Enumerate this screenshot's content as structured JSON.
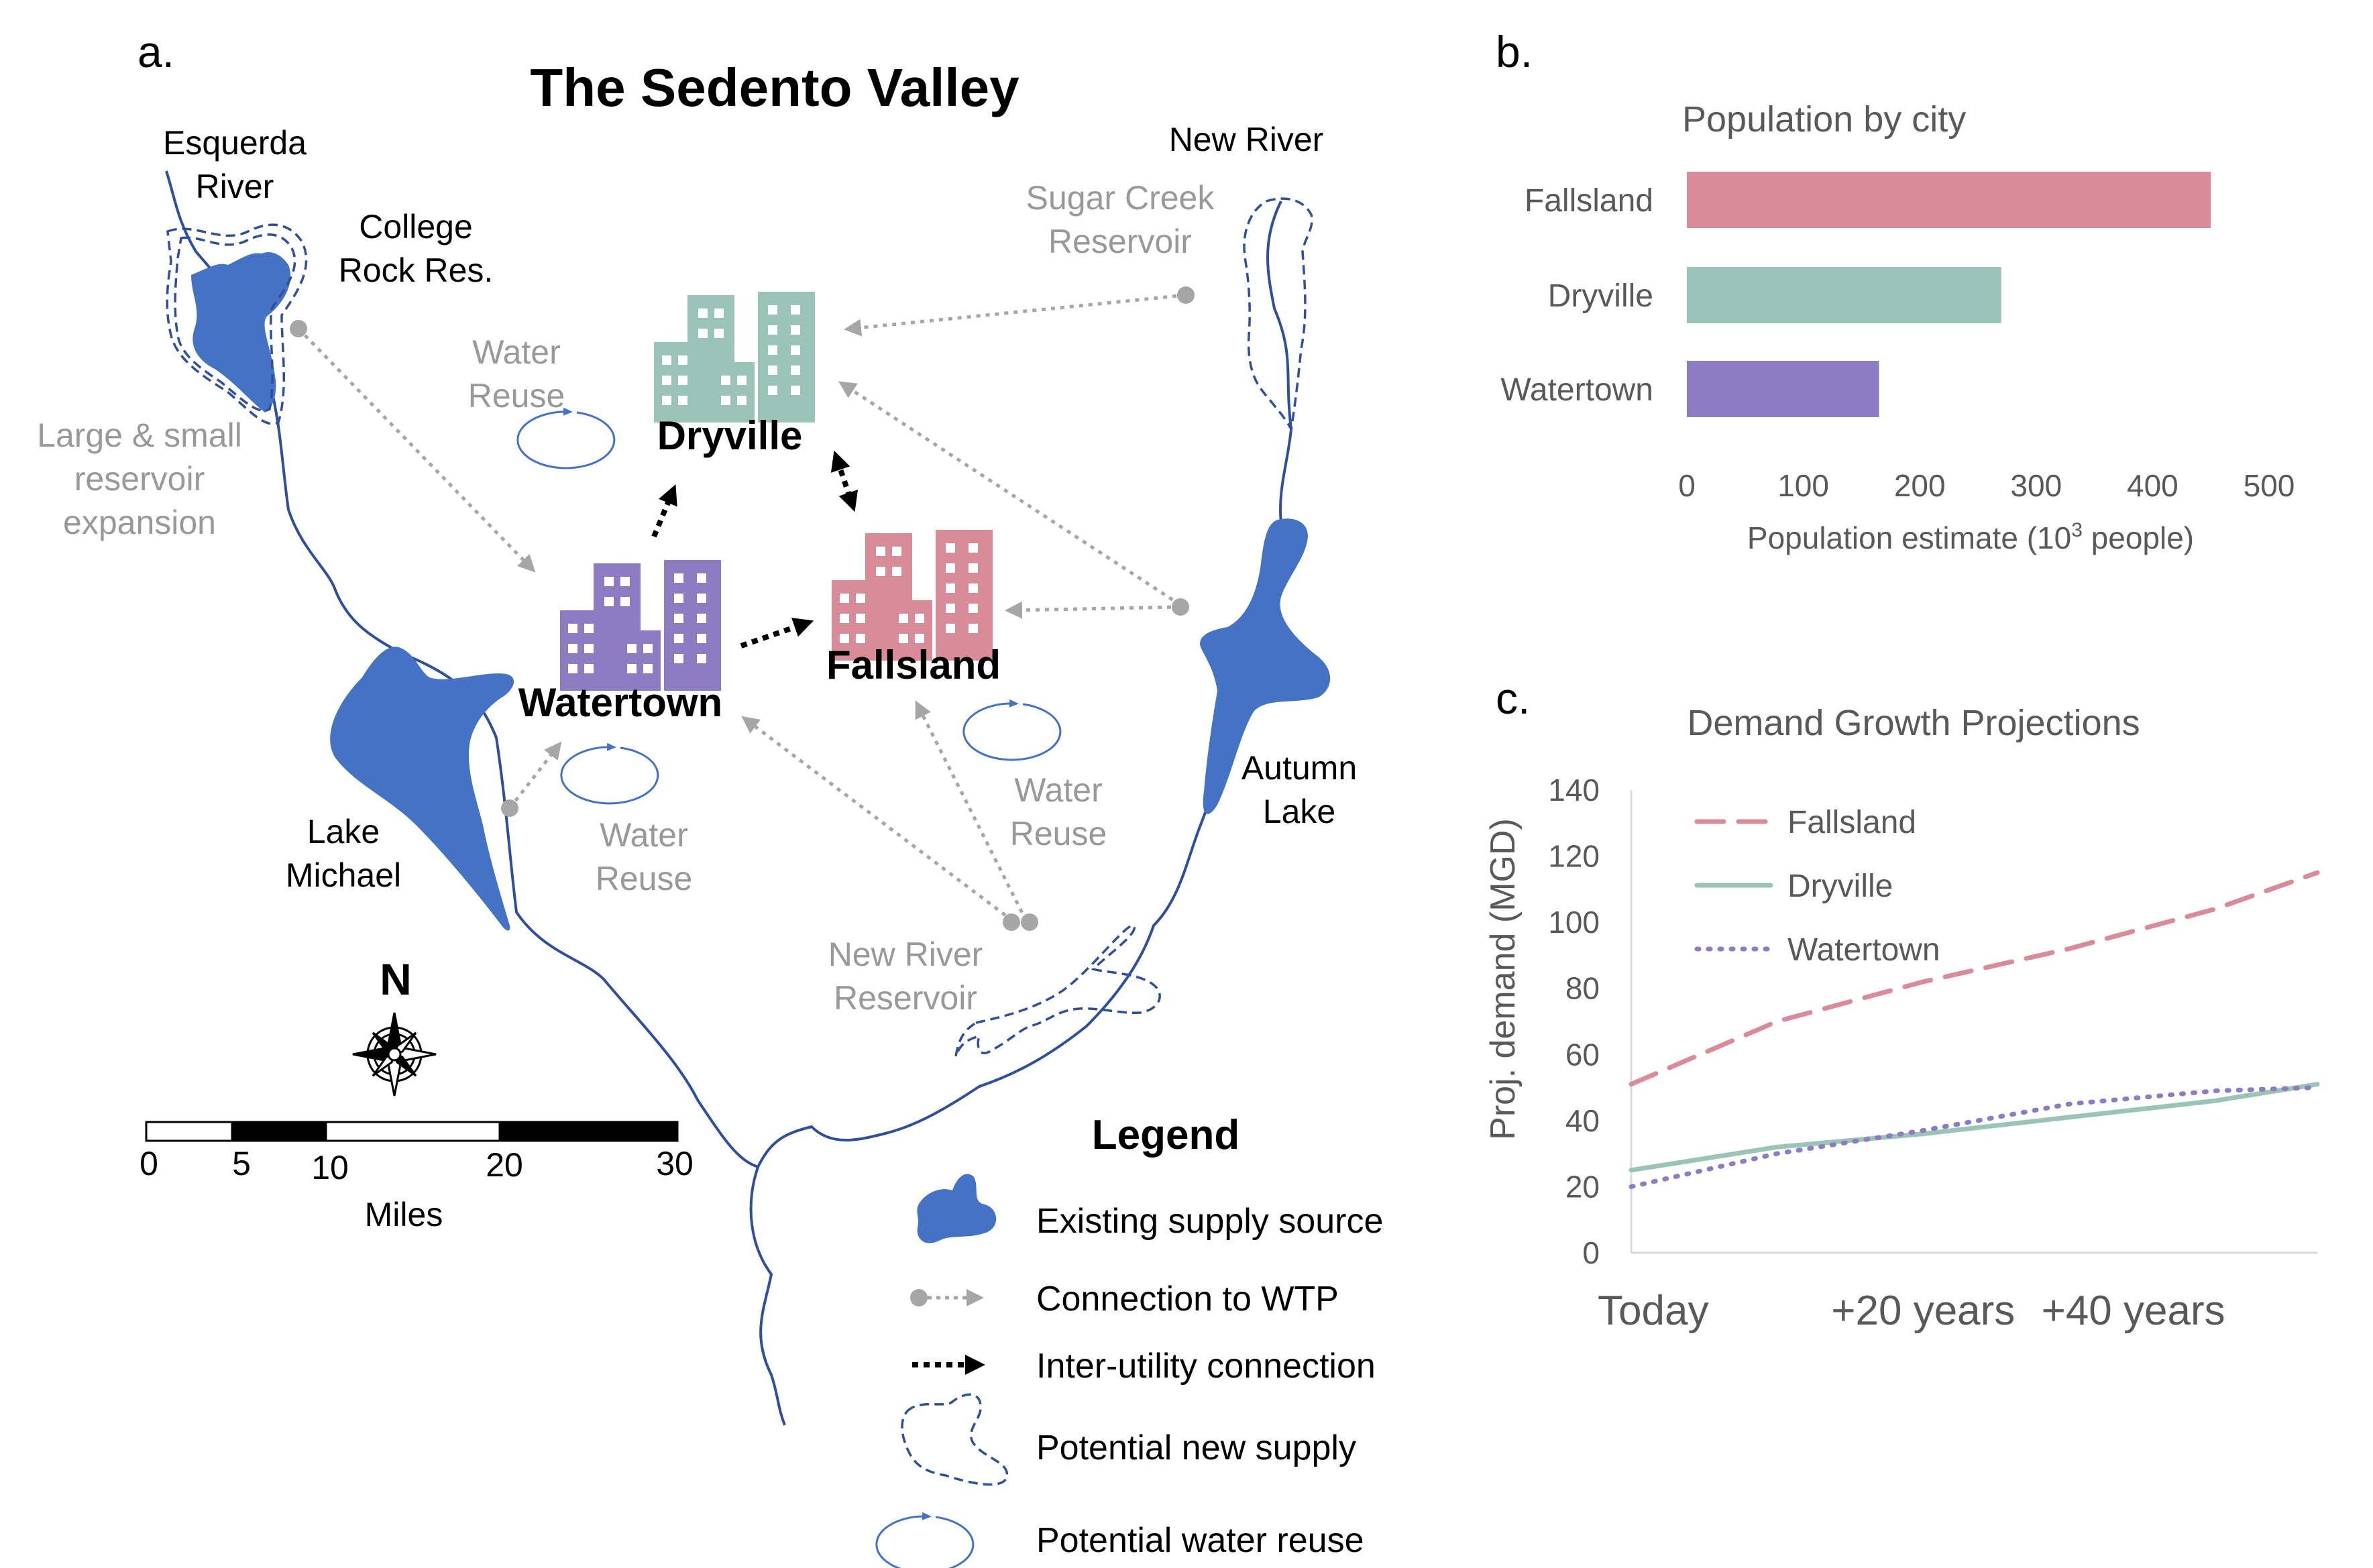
{
  "colors": {
    "lake": "#4472c4",
    "river": "#2f4f9a",
    "connection_wtp": "#a6a6a6",
    "inter_utility": "#000000",
    "fallsland": "#d98b98",
    "dryville": "#9bc4b8",
    "watertown": "#8e7cc3",
    "reuse_loop": "#4472c4"
  },
  "panel_a": {
    "letter": "a.",
    "title": "The Sedento Valley",
    "labels": {
      "esquerda_1": "Esquerda",
      "esquerda_2": "River",
      "college_1": "College",
      "college_2": "Rock Res.",
      "new_river": "New River",
      "sugar_1": "Sugar Creek",
      "sugar_2": "Reservoir",
      "expansion_1": "Large & small",
      "expansion_2": "reservoir",
      "expansion_3": "expansion",
      "reuse_dry_1": "Water",
      "reuse_dry_2": "Reuse",
      "reuse_wat_1": "Water",
      "reuse_wat_2": "Reuse",
      "reuse_fal_1": "Water",
      "reuse_fal_2": "Reuse",
      "lake_michael_1": "Lake",
      "lake_michael_2": "Michael",
      "autumn_1": "Autumn",
      "autumn_2": "Lake",
      "nrr_1": "New River",
      "nrr_2": "Reservoir"
    },
    "cities": {
      "dryville": "Dryville",
      "watertown": "Watertown",
      "fallsland": "Fallsland"
    },
    "north": "N",
    "scale": {
      "ticks": [
        "0",
        "5",
        "10",
        "20",
        "30"
      ],
      "unit": "Miles"
    },
    "legend": {
      "title": "Legend",
      "items": [
        {
          "icon": "supply-source-icon",
          "label": "Existing supply source"
        },
        {
          "icon": "connection-wtp-icon",
          "label": "Connection to WTP"
        },
        {
          "icon": "inter-utility-icon",
          "label": "Inter-utility connection"
        },
        {
          "icon": "potential-supply-icon",
          "label": "Potential new supply"
        },
        {
          "icon": "water-reuse-icon",
          "label": "Potential water reuse"
        }
      ]
    }
  },
  "panel_b": {
    "letter": "b.",
    "chart_data": {
      "type": "bar",
      "orientation": "horizontal",
      "title": "Population by city",
      "categories": [
        "Fallsland",
        "Dryville",
        "Watertown"
      ],
      "values": [
        450,
        270,
        165
      ],
      "colors": [
        "#d98b98",
        "#9bc4b8",
        "#8e7cc3"
      ],
      "xlabel": "Population estimate (10³ people)",
      "xlim": [
        0,
        500
      ],
      "xticks": [
        "0",
        "100",
        "200",
        "300",
        "400",
        "500"
      ],
      "grid": false,
      "legend": "none"
    }
  },
  "panel_c": {
    "letter": "c.",
    "chart_data": {
      "type": "line",
      "title": "Demand Growth Projections",
      "ylabel": "Proj. demand (MGD)",
      "ylim": [
        0,
        140
      ],
      "yticks": [
        "0",
        "20",
        "40",
        "60",
        "80",
        "100",
        "120",
        "140"
      ],
      "x": [
        0,
        10,
        20,
        30,
        40,
        47
      ],
      "xticks": [
        {
          "label": "Today",
          "value": 0
        },
        {
          "label": "+20 years",
          "value": 20
        },
        {
          "label": "+40 years",
          "value": 40
        }
      ],
      "xlim": [
        0,
        47
      ],
      "series": [
        {
          "name": "Fallsland",
          "values": [
            51,
            70,
            82,
            92,
            104,
            115
          ],
          "color": "#d98b98",
          "dash": "dashed"
        },
        {
          "name": "Dryville",
          "values": [
            25,
            32,
            36,
            41,
            46,
            51
          ],
          "color": "#9bc4b8",
          "dash": "solid"
        },
        {
          "name": "Watertown",
          "values": [
            20,
            30,
            37,
            45,
            49,
            50
          ],
          "color": "#8e7cc3",
          "dash": "dotted"
        }
      ],
      "grid": false,
      "legend": "top-left"
    }
  }
}
